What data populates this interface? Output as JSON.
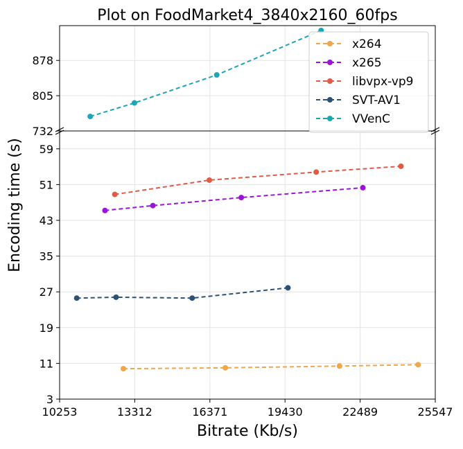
{
  "chart_data": {
    "type": "line",
    "title": "Plot on FoodMarket4_3840x2160_60fps",
    "xlabel": "Bitrate (Kb/s)",
    "ylabel": "Encoding time (s)",
    "x_ticks": [
      10253,
      13312,
      16371,
      19430,
      22489,
      25547
    ],
    "xlim": [
      10253,
      25547
    ],
    "grid": true,
    "legend_position": "top-right",
    "broken_y_axis": true,
    "y_top_panel": {
      "ylim": [
        732,
        950
      ],
      "ticks": [
        732,
        805,
        878
      ]
    },
    "y_bottom_panel": {
      "ylim": [
        3,
        63
      ],
      "ticks": [
        3,
        11,
        19,
        27,
        35,
        43,
        51,
        59
      ]
    },
    "series": [
      {
        "name": "x264",
        "color": "#f0a64a",
        "panel": "bottom",
        "points": [
          [
            12850,
            9.8
          ],
          [
            17000,
            10.0
          ],
          [
            21650,
            10.4
          ],
          [
            24850,
            10.7
          ]
        ]
      },
      {
        "name": "x265",
        "color": "#9b12d9",
        "panel": "bottom",
        "points": [
          [
            12100,
            45.2
          ],
          [
            14050,
            46.3
          ],
          [
            17650,
            48.1
          ],
          [
            22600,
            50.3
          ]
        ]
      },
      {
        "name": "libvpx-vp9",
        "color": "#e05a44",
        "panel": "bottom",
        "points": [
          [
            12500,
            48.8
          ],
          [
            16350,
            52.0
          ],
          [
            20700,
            53.8
          ],
          [
            24150,
            55.1
          ]
        ]
      },
      {
        "name": "SVT-AV1",
        "color": "#2c5273",
        "panel": "bottom",
        "points": [
          [
            10950,
            25.6
          ],
          [
            12550,
            25.8
          ],
          [
            15650,
            25.6
          ],
          [
            19550,
            27.9
          ]
        ]
      },
      {
        "name": "VVenC",
        "color": "#1aa6b4",
        "panel": "top",
        "points": [
          [
            11500,
            762
          ],
          [
            13300,
            790
          ],
          [
            16650,
            848
          ],
          [
            20900,
            940
          ]
        ]
      }
    ]
  }
}
